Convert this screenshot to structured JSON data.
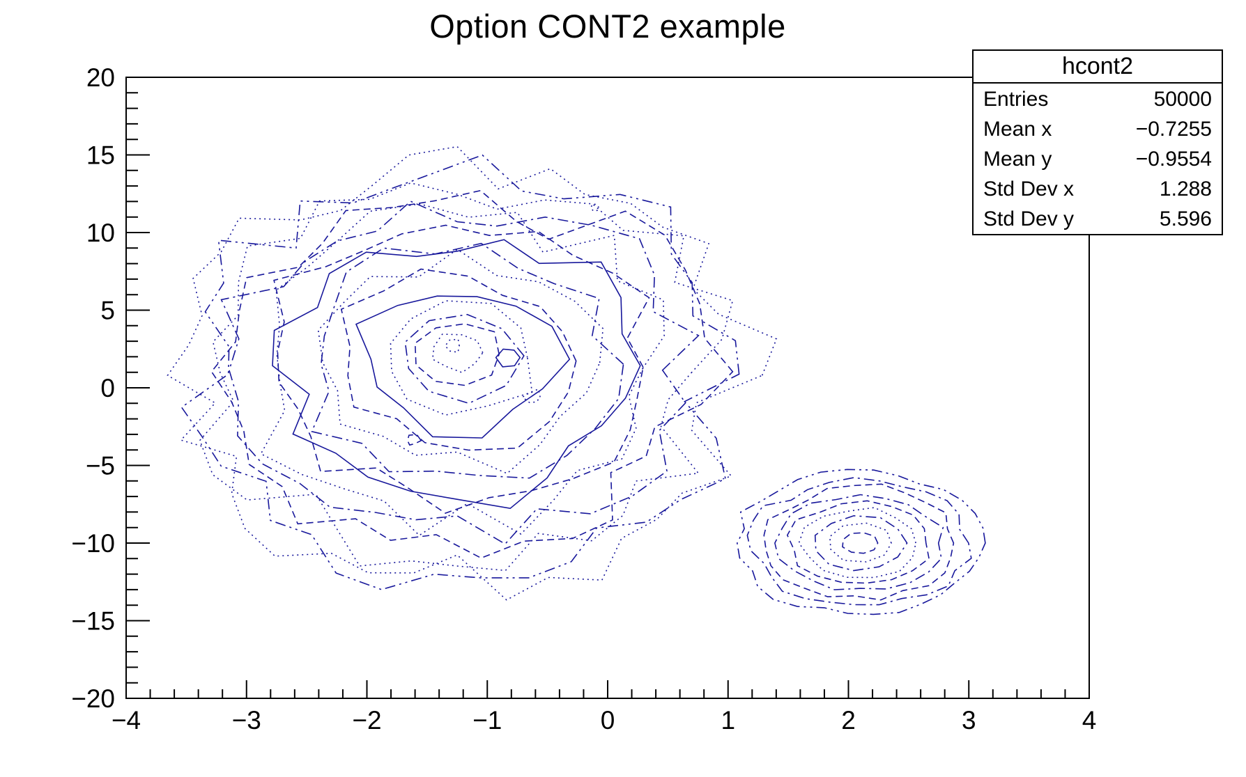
{
  "title": "Option CONT2 example",
  "stats_box": {
    "header": "hcont2",
    "rows": [
      {
        "label": "Entries",
        "value": "50000"
      },
      {
        "label": "Mean x",
        "value": "−0.7255"
      },
      {
        "label": "Mean y",
        "value": "−0.9554"
      },
      {
        "label": "Std Dev x",
        "value": "1.288"
      },
      {
        "label": "Std Dev y",
        "value": "5.596"
      }
    ]
  },
  "chart_data": {
    "type": "contour",
    "title": "Option CONT2 example",
    "xlabel": "",
    "ylabel": "",
    "grid": false,
    "x_range": [
      -4,
      4
    ],
    "y_range": [
      -20,
      20
    ],
    "x_major_ticks": [
      -4,
      -3,
      -2,
      -1,
      0,
      1,
      2,
      3,
      4
    ],
    "x_tick_labels": [
      "−4",
      "−3",
      "−2",
      "−1",
      "0",
      "1",
      "2",
      "3",
      "4"
    ],
    "x_minor_step": 0.2,
    "y_major_ticks": [
      20,
      15,
      10,
      5,
      0,
      -5,
      -10,
      -15,
      -20
    ],
    "y_tick_labels": [
      "20",
      "15",
      "10",
      "5",
      "0",
      "−5",
      "−10",
      "−15",
      "−20"
    ],
    "y_minor_step": 1,
    "line_color": "#17179b",
    "stats": {
      "entries": 50000,
      "mean_x": -0.7255,
      "mean_y": -0.9554,
      "std_dev_x": 1.288,
      "std_dev_y": 5.596
    },
    "distribution_components": [
      {
        "center_x": -1.25,
        "center_y": 0.3,
        "sigma_x": 1.15,
        "sigma_y": 6.5,
        "weight": 0.8
      },
      {
        "center_x": 2.1,
        "center_y": -10,
        "sigma_x": 0.5,
        "sigma_y": 2.3,
        "weight": 0.2
      }
    ],
    "contours": {
      "blobs": [
        {
          "name": "main-peak",
          "cx": -1.25,
          "cy": 0.8,
          "cy_inner": 2.4,
          "rx": 2.38,
          "ry": 13.3,
          "jag": 0.13,
          "verts": 40,
          "seed": 11,
          "scales": [
            1.0,
            0.95,
            0.9,
            0.85,
            0.79,
            0.73,
            0.67,
            0.61,
            0.55,
            0.49,
            0.42,
            0.35,
            0.28,
            0.21,
            0.15,
            0.09
          ],
          "styles": [
            "2 5",
            "15 6 3 6 3 6",
            "2 5",
            "10 6",
            "15 6 3 6",
            "2 5",
            "10 6",
            "",
            "15 6 3 6",
            "2 5",
            "10 6",
            "",
            "2 5",
            "15 6 3 6",
            "10 6",
            "2 5"
          ]
        },
        {
          "name": "secondary-peak",
          "cx": 2.1,
          "cy": -10.0,
          "cy_inner": -10.0,
          "rx": 1.02,
          "ry": 4.6,
          "jag": 0.055,
          "verts": 30,
          "seed": 23,
          "scales": [
            1.0,
            0.89,
            0.78,
            0.68,
            0.58,
            0.48,
            0.38,
            0.27,
            0.15
          ],
          "styles": [
            "15 6 3 6 3 6",
            "15 6 3 6",
            "10 6",
            "15 6 3 6",
            "10 6",
            "2 5",
            "15 6 3 6",
            "2 5",
            "10 6"
          ]
        }
      ],
      "islands": [
        {
          "cx": -1.28,
          "cy": 2.7,
          "r": 11,
          "style": "2 5",
          "seed": 101
        },
        {
          "cx": -0.82,
          "cy": 1.95,
          "r": 14,
          "style": "",
          "seed": 102
        },
        {
          "cx": -0.62,
          "cy": -0.6,
          "r": 12,
          "style": "2 5",
          "seed": 103
        },
        {
          "cx": -1.62,
          "cy": -3.4,
          "r": 9,
          "style": "10 6",
          "seed": 104
        },
        {
          "cx": -0.1,
          "cy": 11.6,
          "r": 6,
          "style": "2 5",
          "seed": 105
        }
      ]
    }
  }
}
